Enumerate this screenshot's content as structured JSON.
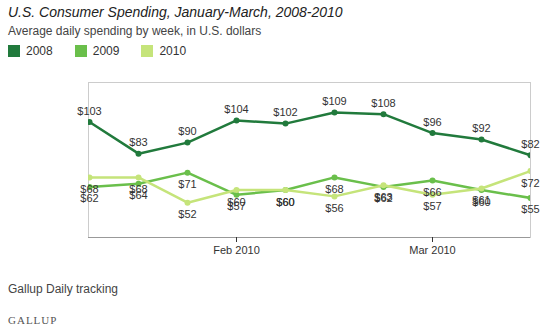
{
  "chart_data": {
    "type": "line",
    "title": "U.S. Consumer Spending, January-March, 2008-2010",
    "subtitle": "Average daily spending by week, in U.S. dollars",
    "caption": "Gallup Daily tracking",
    "source": "GALLUP",
    "categories": [
      null,
      null,
      null,
      "Feb 2010",
      null,
      null,
      null,
      "Mar 2010",
      null,
      null
    ],
    "series": [
      {
        "name": "2008",
        "color": "#217a3c",
        "values": [
          103,
          83,
          90,
          104,
          102,
          109,
          108,
          96,
          92,
          82
        ],
        "value_labels": [
          "$103",
          "$83",
          "$90",
          "$104",
          "$102",
          "$109",
          "$108",
          "$96",
          "$92",
          "$82"
        ]
      },
      {
        "name": "2009",
        "color": "#6abf4b",
        "values": [
          62,
          64,
          71,
          57,
          60,
          68,
          62,
          66,
          60,
          55
        ],
        "value_labels": [
          "$62",
          "$64",
          "$71",
          "$57",
          "$60",
          "$68",
          "$62",
          "$66",
          "$60",
          "$55"
        ]
      },
      {
        "name": "2010",
        "color": "#c5e47a",
        "values": [
          68,
          68,
          52,
          60,
          60,
          56,
          63,
          57,
          61,
          72
        ],
        "value_labels": [
          "$68",
          "$68",
          "$52",
          "$60",
          "$60",
          "$56",
          "$63",
          "$57",
          "$61",
          "$72"
        ]
      }
    ],
    "ylim": [
      30,
      128
    ],
    "tick_labels": "x",
    "data_labels": true,
    "legend": "top-left",
    "grid": false
  }
}
